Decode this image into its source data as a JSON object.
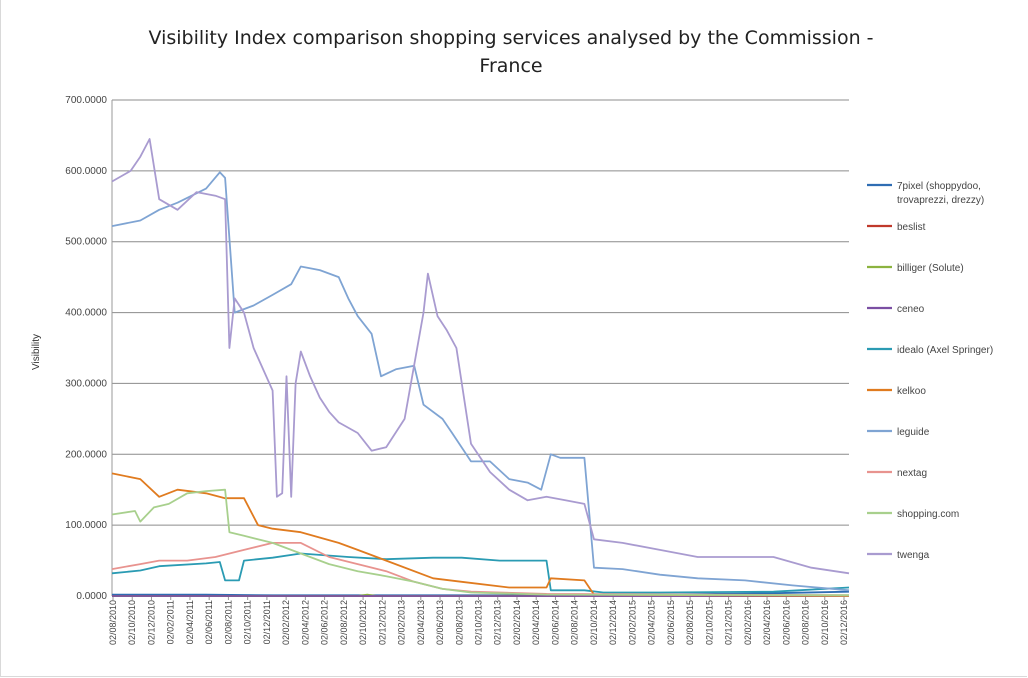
{
  "chart_data": {
    "type": "line",
    "title_lines": [
      "Visibility Index comparison shopping services analysed by the Commission -",
      "France"
    ],
    "ylabel": "Visibility",
    "xlabel": "",
    "ylim": [
      0,
      700
    ],
    "yticks": [
      0,
      100,
      200,
      300,
      400,
      500,
      600,
      700
    ],
    "ytick_labels": [
      "0.0000",
      "100.0000",
      "200.0000",
      "300.0000",
      "400.0000",
      "500.0000",
      "600.0000",
      "700.0000"
    ],
    "grid": true,
    "legend_position": "right",
    "x_start": "2010-08-02",
    "x_end": "2017-01-30",
    "x_tick_labels": [
      "02/08/2010",
      "02/10/2010",
      "02/12/2010",
      "02/02/2011",
      "02/04/2011",
      "02/06/2011",
      "02/08/2011",
      "02/10/2011",
      "02/12/2011",
      "02/02/2012",
      "02/04/2012",
      "02/06/2012",
      "02/08/2012",
      "02/10/2012",
      "02/12/2012",
      "02/02/2013",
      "02/04/2013",
      "02/06/2013",
      "02/08/2013",
      "02/10/2013",
      "02/12/2013",
      "02/02/2014",
      "02/04/2014",
      "02/06/2014",
      "02/08/2014",
      "02/10/2014",
      "02/12/2014",
      "02/02/2015",
      "02/04/2015",
      "02/06/2015",
      "02/08/2015",
      "02/10/2015",
      "02/12/2015",
      "02/02/2016",
      "02/04/2016",
      "02/06/2016",
      "02/08/2016",
      "02/10/2016",
      "02/12/2016"
    ],
    "series": [
      {
        "name": "7pixel (shoppydoo, trovaprezzi, drezzy)",
        "color": "#2f6db3",
        "points": [
          [
            "2010-08-02",
            2
          ],
          [
            "2011-06-01",
            2
          ],
          [
            "2012-01-01",
            1
          ],
          [
            "2013-06-01",
            1
          ],
          [
            "2014-10-01",
            1
          ],
          [
            "2015-06-01",
            2
          ],
          [
            "2016-06-01",
            4
          ],
          [
            "2017-01-30",
            6
          ]
        ]
      },
      {
        "name": "beslist",
        "color": "#c0392b",
        "points": [
          [
            "2010-08-02",
            0
          ],
          [
            "2017-01-30",
            0
          ]
        ]
      },
      {
        "name": "billiger (Solute)",
        "color": "#8cb33f",
        "points": [
          [
            "2010-08-02",
            0
          ],
          [
            "2012-10-01",
            0
          ],
          [
            "2012-11-01",
            2
          ],
          [
            "2012-12-01",
            0
          ],
          [
            "2017-01-30",
            1
          ]
        ]
      },
      {
        "name": "ceneo",
        "color": "#7b4fa3",
        "points": [
          [
            "2010-08-02",
            0
          ],
          [
            "2017-01-30",
            0
          ]
        ]
      },
      {
        "name": "idealo (Axel Springer)",
        "color": "#2a9bb3",
        "points": [
          [
            "2010-08-02",
            32
          ],
          [
            "2010-11-01",
            36
          ],
          [
            "2011-01-01",
            42
          ],
          [
            "2011-06-01",
            46
          ],
          [
            "2011-07-15",
            48
          ],
          [
            "2011-08-01",
            22
          ],
          [
            "2011-09-15",
            22
          ],
          [
            "2011-10-01",
            50
          ],
          [
            "2012-01-01",
            54
          ],
          [
            "2012-04-01",
            60
          ],
          [
            "2012-09-01",
            55
          ],
          [
            "2013-01-01",
            52
          ],
          [
            "2013-06-01",
            54
          ],
          [
            "2013-09-01",
            54
          ],
          [
            "2014-01-01",
            50
          ],
          [
            "2014-06-01",
            50
          ],
          [
            "2014-06-15",
            8
          ],
          [
            "2014-10-01",
            8
          ],
          [
            "2014-12-01",
            5
          ],
          [
            "2015-06-01",
            5
          ],
          [
            "2016-06-01",
            6
          ],
          [
            "2017-01-30",
            12
          ]
        ]
      },
      {
        "name": "kelkoo",
        "color": "#e07b1f",
        "points": [
          [
            "2010-08-02",
            173
          ],
          [
            "2010-11-01",
            165
          ],
          [
            "2011-01-01",
            140
          ],
          [
            "2011-03-01",
            150
          ],
          [
            "2011-06-01",
            145
          ],
          [
            "2011-08-01",
            138
          ],
          [
            "2011-10-01",
            138
          ],
          [
            "2011-11-15",
            100
          ],
          [
            "2012-01-01",
            95
          ],
          [
            "2012-04-01",
            90
          ],
          [
            "2012-08-01",
            75
          ],
          [
            "2012-10-01",
            65
          ],
          [
            "2013-01-01",
            50
          ],
          [
            "2013-06-01",
            25
          ],
          [
            "2013-09-01",
            20
          ],
          [
            "2014-02-01",
            12
          ],
          [
            "2014-06-01",
            12
          ],
          [
            "2014-06-15",
            25
          ],
          [
            "2014-10-01",
            22
          ],
          [
            "2014-11-01",
            2
          ],
          [
            "2017-01-30",
            0
          ]
        ]
      },
      {
        "name": "leguide",
        "color": "#7fa4d3",
        "points": [
          [
            "2010-08-02",
            522
          ],
          [
            "2010-11-01",
            530
          ],
          [
            "2011-01-01",
            545
          ],
          [
            "2011-03-01",
            555
          ],
          [
            "2011-06-01",
            575
          ],
          [
            "2011-07-15",
            598
          ],
          [
            "2011-08-01",
            590
          ],
          [
            "2011-09-01",
            400
          ],
          [
            "2011-11-01",
            410
          ],
          [
            "2012-01-01",
            425
          ],
          [
            "2012-03-01",
            440
          ],
          [
            "2012-04-01",
            465
          ],
          [
            "2012-06-01",
            460
          ],
          [
            "2012-08-01",
            450
          ],
          [
            "2012-09-01",
            420
          ],
          [
            "2012-10-01",
            395
          ],
          [
            "2012-11-15",
            370
          ],
          [
            "2012-12-15",
            310
          ],
          [
            "2013-02-01",
            320
          ],
          [
            "2013-04-01",
            325
          ],
          [
            "2013-05-01",
            270
          ],
          [
            "2013-07-01",
            250
          ],
          [
            "2013-08-01",
            230
          ],
          [
            "2013-10-01",
            190
          ],
          [
            "2013-12-01",
            190
          ],
          [
            "2014-02-01",
            165
          ],
          [
            "2014-04-01",
            160
          ],
          [
            "2014-05-15",
            150
          ],
          [
            "2014-06-15",
            200
          ],
          [
            "2014-07-15",
            195
          ],
          [
            "2014-09-15",
            195
          ],
          [
            "2014-10-01",
            195
          ],
          [
            "2014-11-01",
            40
          ],
          [
            "2015-02-01",
            38
          ],
          [
            "2015-06-01",
            30
          ],
          [
            "2015-10-01",
            25
          ],
          [
            "2016-03-01",
            22
          ],
          [
            "2016-08-01",
            15
          ],
          [
            "2017-01-30",
            8
          ]
        ]
      },
      {
        "name": "nextag",
        "color": "#e8938f",
        "points": [
          [
            "2010-08-02",
            38
          ],
          [
            "2010-11-01",
            45
          ],
          [
            "2011-01-01",
            50
          ],
          [
            "2011-04-01",
            50
          ],
          [
            "2011-07-01",
            55
          ],
          [
            "2011-10-01",
            65
          ],
          [
            "2012-01-01",
            75
          ],
          [
            "2012-04-01",
            75
          ],
          [
            "2012-07-01",
            55
          ],
          [
            "2012-10-01",
            45
          ],
          [
            "2013-01-01",
            35
          ],
          [
            "2013-04-01",
            20
          ],
          [
            "2013-07-01",
            10
          ],
          [
            "2013-10-01",
            6
          ],
          [
            "2014-06-01",
            3
          ],
          [
            "2017-01-30",
            1
          ]
        ]
      },
      {
        "name": "shopping.com",
        "color": "#a8d08d",
        "points": [
          [
            "2010-08-02",
            115
          ],
          [
            "2010-10-15",
            120
          ],
          [
            "2010-11-01",
            105
          ],
          [
            "2010-12-15",
            125
          ],
          [
            "2011-02-01",
            130
          ],
          [
            "2011-04-01",
            145
          ],
          [
            "2011-06-01",
            148
          ],
          [
            "2011-08-01",
            150
          ],
          [
            "2011-08-15",
            90
          ],
          [
            "2011-10-01",
            85
          ],
          [
            "2012-01-01",
            75
          ],
          [
            "2012-04-01",
            60
          ],
          [
            "2012-07-01",
            45
          ],
          [
            "2012-10-01",
            35
          ],
          [
            "2013-01-01",
            28
          ],
          [
            "2013-04-01",
            20
          ],
          [
            "2013-07-01",
            10
          ],
          [
            "2013-10-01",
            5
          ],
          [
            "2014-06-01",
            2
          ],
          [
            "2017-01-30",
            1
          ]
        ]
      },
      {
        "name": "twenga",
        "color": "#a99bd0",
        "points": [
          [
            "2010-08-02",
            585
          ],
          [
            "2010-10-01",
            600
          ],
          [
            "2010-11-01",
            620
          ],
          [
            "2010-12-01",
            645
          ],
          [
            "2011-01-01",
            560
          ],
          [
            "2011-03-01",
            545
          ],
          [
            "2011-05-01",
            570
          ],
          [
            "2011-07-01",
            565
          ],
          [
            "2011-08-01",
            560
          ],
          [
            "2011-08-15",
            350
          ],
          [
            "2011-09-01",
            420
          ],
          [
            "2011-10-01",
            400
          ],
          [
            "2011-11-01",
            350
          ],
          [
            "2012-01-01",
            290
          ],
          [
            "2012-01-15",
            140
          ],
          [
            "2012-02-01",
            145
          ],
          [
            "2012-02-15",
            310
          ],
          [
            "2012-03-01",
            140
          ],
          [
            "2012-03-15",
            300
          ],
          [
            "2012-04-01",
            345
          ],
          [
            "2012-05-01",
            310
          ],
          [
            "2012-06-01",
            280
          ],
          [
            "2012-07-01",
            260
          ],
          [
            "2012-08-01",
            245
          ],
          [
            "2012-10-01",
            230
          ],
          [
            "2012-11-15",
            205
          ],
          [
            "2013-01-01",
            210
          ],
          [
            "2013-03-01",
            250
          ],
          [
            "2013-05-01",
            400
          ],
          [
            "2013-05-15",
            455
          ],
          [
            "2013-06-15",
            395
          ],
          [
            "2013-07-15",
            375
          ],
          [
            "2013-08-15",
            350
          ],
          [
            "2013-10-01",
            215
          ],
          [
            "2013-12-01",
            175
          ],
          [
            "2014-02-01",
            150
          ],
          [
            "2014-04-01",
            135
          ],
          [
            "2014-06-01",
            140
          ],
          [
            "2014-08-01",
            135
          ],
          [
            "2014-10-01",
            130
          ],
          [
            "2014-11-01",
            80
          ],
          [
            "2015-02-01",
            75
          ],
          [
            "2015-06-01",
            65
          ],
          [
            "2015-10-01",
            55
          ],
          [
            "2016-02-01",
            55
          ],
          [
            "2016-06-01",
            55
          ],
          [
            "2016-10-01",
            40
          ],
          [
            "2017-01-30",
            32
          ]
        ]
      }
    ]
  }
}
